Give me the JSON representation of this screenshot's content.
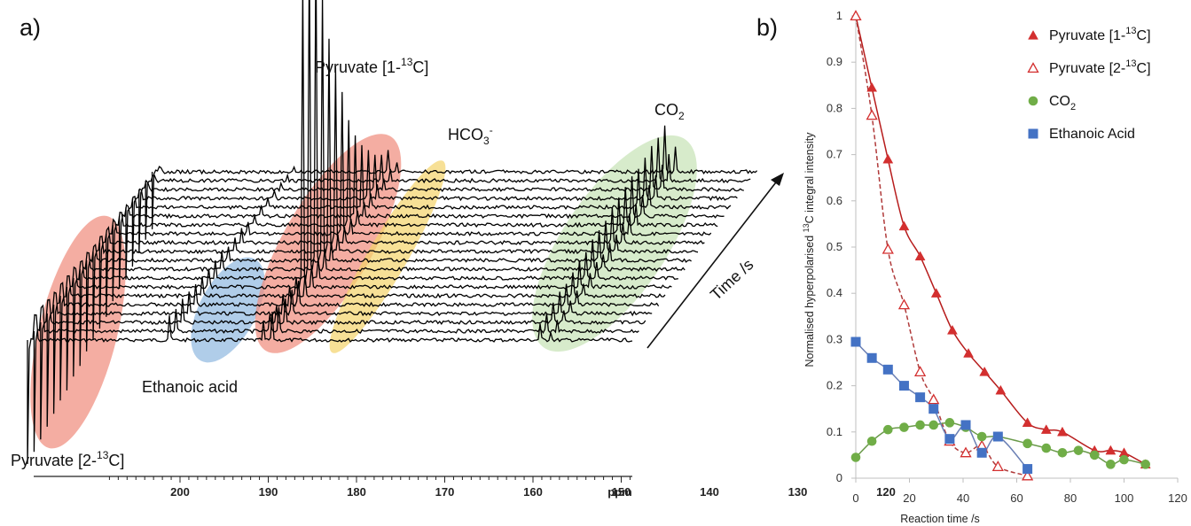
{
  "panel_a": {
    "label": "a)",
    "annotations": {
      "pyruvate_1": "Pyruvate [1-",
      "pyruvate_1_sup": "13",
      "pyruvate_1_tail": "C]",
      "pyruvate_2": "Pyruvate [2-",
      "pyruvate_2_sup": "13",
      "pyruvate_2_tail": "C]",
      "ethanoic": "Ethanoic acid",
      "hco3": "HCO",
      "hco3_sub": "3",
      "hco3_sup": "-",
      "co2": "CO",
      "co2_sub": "2",
      "time_axis": "Time /s"
    },
    "axis_ticks": [
      "200",
      "190",
      "180",
      "170",
      "160",
      "150",
      "140",
      "130",
      "120"
    ],
    "axis_unit": "ppm",
    "highlight_colors": {
      "pyruvate": "#f08a7a",
      "ethanoic": "#8fb8e0",
      "bicarbonate": "#f3d36a",
      "co2": "#c6e2b5"
    }
  },
  "panel_b": {
    "label": "b)",
    "legend": [
      {
        "name": "Pyruvate [1-",
        "sup": "13",
        "tail": "C]",
        "marker": "triangle-filled",
        "color": "#d32f2f"
      },
      {
        "name": "Pyruvate [2-",
        "sup": "13",
        "tail": "C]",
        "marker": "triangle-open",
        "color": "#d32f2f"
      },
      {
        "name": "CO",
        "sub": "2",
        "marker": "circle",
        "color": "#70ad47"
      },
      {
        "name": "Ethanoic Acid",
        "marker": "square",
        "color": "#4472c4"
      }
    ],
    "xlabel": "Reaction time /s",
    "ylabel_pre": "Normalised hyperpolarised ",
    "ylabel_sup": "13",
    "ylabel_post": "C integral intensity",
    "xticks": [
      "0",
      "20",
      "40",
      "60",
      "80",
      "100",
      "120"
    ],
    "yticks": [
      "0",
      "0.1",
      "0.2",
      "0.3",
      "0.4",
      "0.5",
      "0.6",
      "0.7",
      "0.8",
      "0.9",
      "1"
    ]
  },
  "chart_data": {
    "type": "scatter",
    "xlabel": "Reaction time /s",
    "ylabel": "Normalised hyperpolarised 13C integral intensity",
    "xlim": [
      0,
      120
    ],
    "ylim": [
      0,
      1
    ],
    "grid": false,
    "legend_position": "top-right",
    "series": [
      {
        "name": "Pyruvate [1-13C]",
        "marker": "triangle-filled",
        "color": "#d32f2f",
        "fit": "solid",
        "x": [
          0,
          6,
          12,
          18,
          24,
          30,
          36,
          42,
          48,
          54,
          64,
          71,
          77,
          89,
          95,
          100,
          108
        ],
        "y": [
          1.0,
          0.845,
          0.69,
          0.545,
          0.48,
          0.4,
          0.32,
          0.27,
          0.23,
          0.19,
          0.12,
          0.105,
          0.1,
          0.06,
          0.06,
          0.055,
          0.03
        ]
      },
      {
        "name": "Pyruvate [2-13C]",
        "marker": "triangle-open",
        "color": "#d32f2f",
        "fit": "dashed",
        "x": [
          0,
          6,
          12,
          18,
          24,
          29,
          35,
          41,
          47,
          53,
          64
        ],
        "y": [
          1.0,
          0.785,
          0.495,
          0.375,
          0.23,
          0.17,
          0.08,
          0.055,
          0.07,
          0.025,
          0.005
        ]
      },
      {
        "name": "CO2",
        "marker": "circle",
        "color": "#70ad47",
        "fit": "solid",
        "x": [
          0,
          6,
          12,
          18,
          24,
          29,
          35,
          41,
          47,
          53,
          64,
          71,
          77,
          83,
          89,
          95,
          100,
          108
        ],
        "y": [
          0.045,
          0.08,
          0.105,
          0.11,
          0.115,
          0.115,
          0.12,
          0.11,
          0.09,
          0.09,
          0.075,
          0.065,
          0.055,
          0.06,
          0.05,
          0.03,
          0.04,
          0.03
        ]
      },
      {
        "name": "Ethanoic Acid",
        "marker": "square",
        "color": "#4472c4",
        "fit": "solid",
        "x": [
          0,
          6,
          12,
          18,
          24,
          29,
          35,
          41,
          47,
          53,
          64
        ],
        "y": [
          0.295,
          0.26,
          0.235,
          0.2,
          0.175,
          0.15,
          0.085,
          0.115,
          0.055,
          0.09,
          0.02
        ]
      }
    ]
  }
}
